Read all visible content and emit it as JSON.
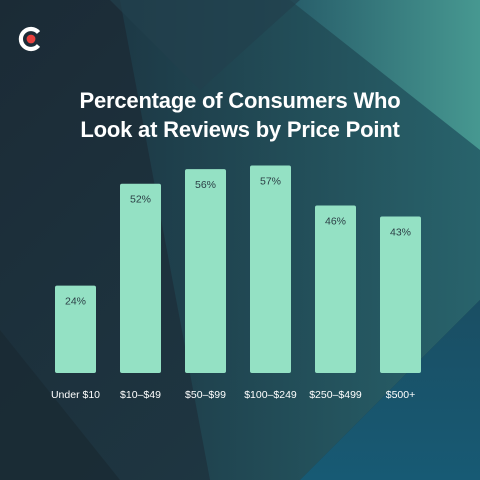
{
  "brand": {
    "logo_icon": "brand-c-logo-icon",
    "colors": {
      "ring": "#ffffff",
      "dot": "#e8413e"
    }
  },
  "colors": {
    "bar": "#94e1c4",
    "bg_dark": "#1d2f3a",
    "bg_mid": "#1f4f5a",
    "bg_light": "#3f8f8c"
  },
  "chart_data": {
    "type": "bar",
    "title_lines": [
      "Percentage of Consumers Who",
      "Look at Reviews by Price Point"
    ],
    "categories": [
      "Under $10",
      "$10–$49",
      "$50–$99",
      "$100–$249",
      "$250–$499",
      "$500+"
    ],
    "values": [
      24,
      52,
      56,
      57,
      46,
      43
    ],
    "value_labels": [
      "24%",
      "52%",
      "56%",
      "57%",
      "46%",
      "43%"
    ],
    "ylim": [
      0,
      60
    ],
    "grid": false,
    "legend": "none"
  }
}
